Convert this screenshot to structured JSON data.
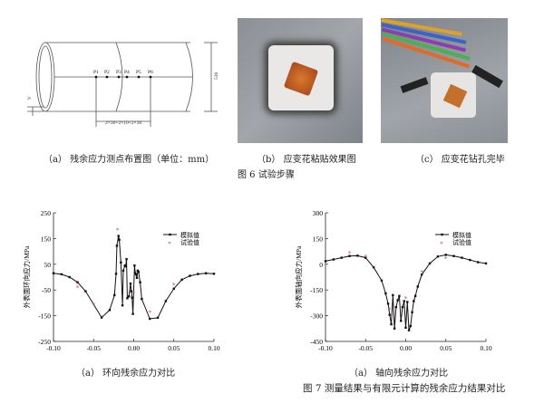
{
  "figure6": {
    "title": "图 6  试验步骤",
    "panel_a": {
      "caption": "（a） 残余应力测点布置图（单位：mm）",
      "points": [
        "P1",
        "P2",
        "P3",
        "P4",
        "P5",
        "P6"
      ],
      "dim_spacing": "2×30+2×10+2×30",
      "dim_diameter": "530",
      "dim_thickness": "9"
    },
    "panel_b": {
      "caption": "（b） 应变花粘贴效果图"
    },
    "panel_c": {
      "caption": "（c） 应变花钻孔完毕"
    }
  },
  "figure7": {
    "title": "图 7  测量结果与有限元计算的残余应力结果对比"
  },
  "chart_data": [
    {
      "type": "line",
      "caption": "（a） 环向残余应力对比",
      "xlabel": "距离焊缝中心位置/mm",
      "ylabel": "外表面环向应力/MPa",
      "xlim": [
        -0.1,
        0.1
      ],
      "ylim": [
        -250,
        250
      ],
      "xticks": [
        "-0.10",
        "-0.05",
        "0.00",
        "0.05",
        "0.10"
      ],
      "yticks": [
        "-250",
        "-150",
        "-50",
        "50",
        "150",
        "250"
      ],
      "legend_position": "top-right",
      "series": [
        {
          "name": "模拟值",
          "style": "line-square",
          "color": "#111111",
          "x": [
            -0.1,
            -0.09,
            -0.08,
            -0.07,
            -0.06,
            -0.04,
            -0.03,
            -0.024,
            -0.022,
            -0.021,
            -0.019,
            -0.018,
            -0.016,
            -0.014,
            -0.013,
            -0.011,
            -0.01,
            -0.009,
            -0.008,
            -0.006,
            -0.004,
            -0.003,
            -0.002,
            -0.001,
            0.001,
            0.002,
            0.003,
            0.004,
            0.005,
            0.006,
            0.008,
            0.01,
            0.02,
            0.03,
            0.04,
            0.05,
            0.06,
            0.07,
            0.08,
            0.09,
            0.1
          ],
          "y": [
            15,
            11,
            0,
            -20,
            -55,
            -157,
            -128,
            -70,
            13,
            122,
            160,
            145,
            57,
            -110,
            25,
            45,
            42,
            70,
            -82,
            -75,
            -25,
            -55,
            -80,
            -143,
            45,
            15,
            10,
            -3,
            25,
            20,
            -20,
            -85,
            -162,
            -158,
            -93,
            -45,
            -10,
            5,
            12,
            15,
            13
          ]
        },
        {
          "name": "试验值",
          "style": "marker-star",
          "color": "#e05050",
          "x": [
            -0.07,
            -0.05,
            -0.02,
            0.0,
            0.02,
            0.05
          ],
          "y": [
            -40,
            -108,
            183,
            -62,
            -138,
            -30
          ]
        }
      ]
    },
    {
      "type": "line",
      "caption": "（a） 轴向残余应力对比",
      "xlabel": "距离焊缝中心位置/mm",
      "ylabel": "外表面轴向应力/MPa",
      "xlim": [
        -0.1,
        0.1
      ],
      "ylim": [
        -450,
        300
      ],
      "xticks": [
        "-0.10",
        "-0.05",
        "0.00",
        "0.05",
        "0.10"
      ],
      "yticks": [
        "-450",
        "-300",
        "-150",
        "0",
        "150",
        "300"
      ],
      "legend_position": "top-right",
      "series": [
        {
          "name": "模拟值",
          "style": "line-square",
          "color": "#111111",
          "x": [
            -0.1,
            -0.09,
            -0.08,
            -0.07,
            -0.06,
            -0.05,
            -0.04,
            -0.03,
            -0.025,
            -0.022,
            -0.02,
            -0.018,
            -0.016,
            -0.014,
            -0.012,
            -0.01,
            -0.008,
            -0.006,
            -0.004,
            -0.002,
            0.0,
            0.002,
            0.004,
            0.006,
            0.008,
            0.01,
            0.012,
            0.015,
            0.02,
            0.03,
            0.04,
            0.05,
            0.06,
            0.07,
            0.08,
            0.09,
            0.1
          ],
          "y": [
            18,
            28,
            38,
            48,
            50,
            38,
            -18,
            -95,
            -170,
            -230,
            -295,
            -350,
            -180,
            -375,
            -250,
            -210,
            -185,
            -330,
            -250,
            -215,
            -370,
            -220,
            -385,
            -360,
            -280,
            -215,
            -185,
            -130,
            -60,
            5,
            45,
            55,
            48,
            38,
            25,
            12,
            5
          ]
        },
        {
          "name": "试验值",
          "style": "marker-star",
          "color": "#e05050",
          "x": [
            -0.07,
            -0.05,
            -0.02,
            0.0,
            0.02,
            0.05
          ],
          "y": [
            65,
            43,
            -262,
            -200,
            -45,
            32
          ]
        }
      ]
    }
  ]
}
